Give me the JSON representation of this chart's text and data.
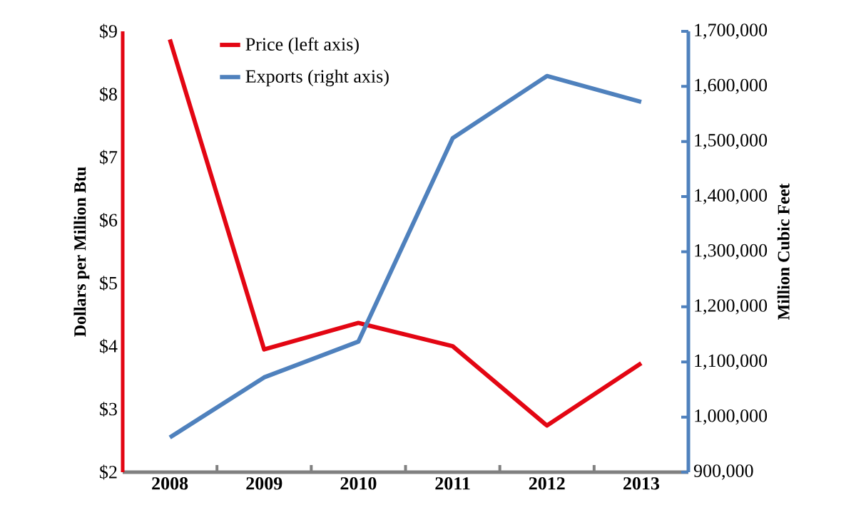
{
  "chart_data": {
    "type": "line",
    "categories": [
      "2008",
      "2009",
      "2010",
      "2011",
      "2012",
      "2013"
    ],
    "series": [
      {
        "name": "Price (left axis)",
        "color": "#e30613",
        "values": [
          8.87,
          3.95,
          4.37,
          4.0,
          2.74,
          3.73
        ]
      },
      {
        "name": "Exports (right axis)",
        "color": "#4f81bd",
        "axis": "y2",
        "values": [
          963000,
          1072000,
          1137000,
          1506000,
          1619000,
          1572000
        ]
      }
    ],
    "ylabel": "Dollars per Million Btu",
    "y2label": "Million Cubic Feet",
    "ylim": [
      2,
      9
    ],
    "yticks": [
      {
        "value": 2,
        "label": "$2"
      },
      {
        "value": 3,
        "label": "$3"
      },
      {
        "value": 4,
        "label": "$4"
      },
      {
        "value": 5,
        "label": "$5"
      },
      {
        "value": 6,
        "label": "$6"
      },
      {
        "value": 7,
        "label": "$7"
      },
      {
        "value": 8,
        "label": "$8"
      },
      {
        "value": 9,
        "label": "$9"
      }
    ],
    "y2lim": [
      900000,
      1700000
    ],
    "y2ticks": [
      {
        "value": 900000,
        "label": "900,000"
      },
      {
        "value": 1000000,
        "label": "1,000,000"
      },
      {
        "value": 1100000,
        "label": "1,100,000"
      },
      {
        "value": 1200000,
        "label": "1,200,000"
      },
      {
        "value": 1300000,
        "label": "1,300,000"
      },
      {
        "value": 1400000,
        "label": "1,400,000"
      },
      {
        "value": 1500000,
        "label": "1,500,000"
      },
      {
        "value": 1600000,
        "label": "1,600,000"
      },
      {
        "value": 1700000,
        "label": "1,700,000"
      }
    ],
    "legend": "top left",
    "grid": false
  }
}
